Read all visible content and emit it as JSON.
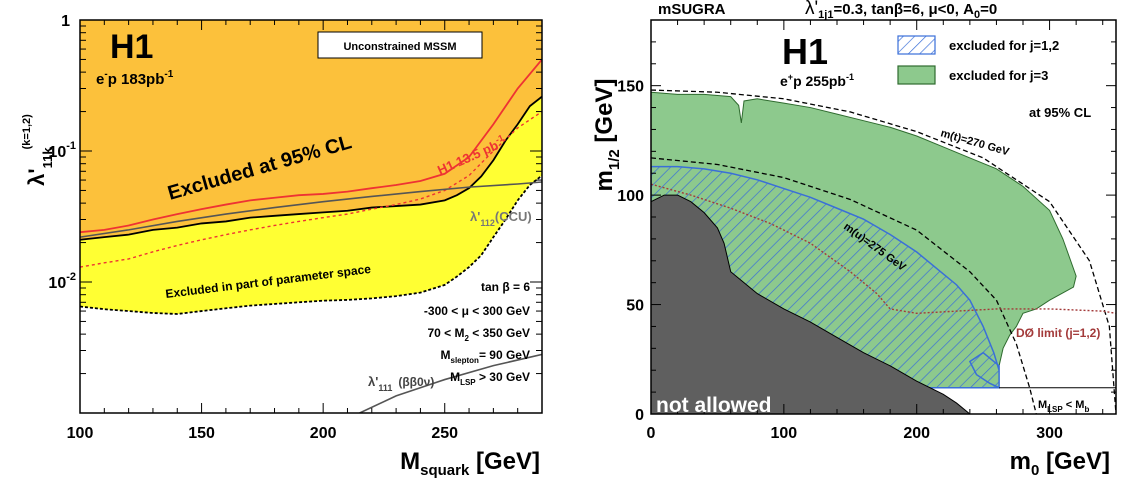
{
  "chart_data": [
    {
      "type": "area",
      "xlabel_main": "M",
      "xlabel_sub": "squark",
      "xlabel_unit": " [GeV]",
      "ylabel_main": "λ'",
      "ylabel_sub": "11k",
      "ylabel_sup": "(k=1,2)",
      "xlim": [
        100,
        290
      ],
      "ylim": [
        0.001,
        1
      ],
      "y_log": true,
      "x_ticks": [
        100,
        150,
        200,
        250
      ],
      "y_ticks": [
        {
          "v": 1,
          "label": "1",
          "exp": ""
        },
        {
          "v": 0.1,
          "label": "10",
          "exp": "-1"
        },
        {
          "v": 0.01,
          "label": "10",
          "exp": "-2"
        }
      ],
      "experiment": "H1",
      "dataset_main": "e",
      "dataset_sup": "-",
      "dataset_rest": "p 183pb",
      "dataset_exp": "-1",
      "box_label": "Unconstrained MSSM",
      "excluded_label": "Excluded at 95% CL",
      "partial_label": "Excluded in part of parameter space",
      "h1_prev_main": "H1 13.5 pb",
      "h1_prev_exp": "-1",
      "ccu_main": "λ'",
      "ccu_sub": "112",
      "ccu_rest": "(CCU)",
      "bb0v_main": "λ'",
      "bb0v_sub": "111",
      "bb0v_rest": "(ββ0ν)",
      "params": [
        "tan β = 6",
        "-300 <  μ  < 300 GeV",
        "70 < M",
        "M",
        "M"
      ],
      "param_lines": {
        "tanb": "tan β = 6",
        "mu": "-300 <  μ  < 300 GeV",
        "m2_a": "70 < M",
        "m2_sub": "2",
        "m2_b": " < 350 GeV",
        "msl_a": "M",
        "msl_sub": "slepton",
        "msl_b": "= 90 GeV",
        "mlsp_a": "M",
        "mlsp_sub": "LSP",
        "mlsp_b": " > 30 GeV"
      },
      "series": [
        {
          "name": "Excluded at 95% CL",
          "color": "#fcc13b",
          "x": [
            100,
            110,
            120,
            130,
            140,
            150,
            160,
            170,
            180,
            190,
            200,
            210,
            220,
            230,
            240,
            250,
            255,
            260,
            265,
            270,
            275,
            280,
            285,
            290
          ],
          "y": [
            0.021,
            0.022,
            0.023,
            0.025,
            0.026,
            0.028,
            0.029,
            0.031,
            0.032,
            0.033,
            0.034,
            0.035,
            0.037,
            0.038,
            0.039,
            0.042,
            0.046,
            0.052,
            0.064,
            0.085,
            0.12,
            0.16,
            0.22,
            0.26
          ]
        },
        {
          "name": "Excluded in part of parameter space",
          "color": "#ffff33",
          "x": [
            100,
            110,
            120,
            130,
            140,
            150,
            160,
            170,
            180,
            190,
            200,
            210,
            220,
            230,
            240,
            250,
            255,
            260,
            265,
            270,
            275,
            280,
            285,
            290
          ],
          "y": [
            0.0065,
            0.0062,
            0.006,
            0.0058,
            0.0057,
            0.006,
            0.0063,
            0.0066,
            0.0068,
            0.007,
            0.0072,
            0.0073,
            0.0075,
            0.0078,
            0.0083,
            0.0095,
            0.011,
            0.013,
            0.016,
            0.022,
            0.03,
            0.042,
            0.055,
            0.065
          ]
        },
        {
          "name": "H1 13.5 pb-1",
          "color": "#ee3333",
          "x": [
            100,
            110,
            120,
            130,
            140,
            150,
            160,
            170,
            180,
            190,
            200,
            210,
            220,
            230,
            240,
            250,
            260,
            270,
            280,
            290
          ],
          "y": [
            0.024,
            0.025,
            0.027,
            0.03,
            0.033,
            0.036,
            0.039,
            0.042,
            0.044,
            0.046,
            0.047,
            0.049,
            0.052,
            0.055,
            0.059,
            0.067,
            0.09,
            0.16,
            0.3,
            0.5
          ]
        },
        {
          "name": "H1 13.5 pb-1 (dashed)",
          "color": "#ee3333",
          "x": [
            100,
            110,
            120,
            130,
            140,
            150,
            160,
            170,
            180,
            190,
            200,
            210,
            220,
            230,
            240,
            250,
            260,
            270,
            280,
            290
          ],
          "y": [
            0.013,
            0.014,
            0.015,
            0.017,
            0.019,
            0.021,
            0.023,
            0.025,
            0.027,
            0.029,
            0.031,
            0.033,
            0.036,
            0.039,
            0.043,
            0.05,
            0.065,
            0.1,
            0.15,
            0.2
          ]
        },
        {
          "name": "λ'112 (CCU)",
          "color": "#555555",
          "x": [
            100,
            120,
            140,
            160,
            180,
            200,
            220,
            240,
            260,
            280,
            290
          ],
          "y": [
            0.022,
            0.025,
            0.029,
            0.033,
            0.037,
            0.041,
            0.045,
            0.049,
            0.053,
            0.056,
            0.058
          ]
        },
        {
          "name": "λ'111 (ββ0ν)",
          "color": "#555555",
          "x": [
            215,
            230,
            250,
            270,
            290
          ],
          "y": [
            0.001,
            0.00135,
            0.0018,
            0.0023,
            0.0028
          ]
        }
      ]
    },
    {
      "type": "area",
      "xlabel_main": "m",
      "xlabel_sub": "0",
      "xlabel_unit": " [GeV]",
      "ylabel_main": "m",
      "ylabel_sub": "1/2",
      "ylabel_unit": " [GeV]",
      "xlim": [
        0,
        350
      ],
      "ylim": [
        0,
        180
      ],
      "x_ticks": [
        0,
        100,
        200,
        300
      ],
      "y_ticks": [
        0,
        50,
        100,
        150
      ],
      "title_left": "mSUGRA",
      "title_right_main": "λ'",
      "title_right_sub": "1j1",
      "title_right_rest": "=0.3, tanβ=6, μ<0, A",
      "title_right_sub2": "0",
      "title_right_end": "=0",
      "experiment": "H1",
      "dataset_main": "e",
      "dataset_sup": "+",
      "dataset_rest": "p 255pb",
      "dataset_exp": "-1",
      "legend": [
        {
          "label": "excluded for j=1,2",
          "color": "#3a6fd8"
        },
        {
          "label": "excluded for j=3",
          "color": "#7fc47f"
        }
      ],
      "cl_label": "at 95% CL",
      "stop_label_a": "m(",
      "stop_label_t": "t",
      "stop_label_b": ")=270 GeV",
      "sup_label_a": "m(",
      "sup_label_t": "u",
      "sup_label_b": ")=275 GeV",
      "d0_label": "DØ limit (j=1,2)",
      "not_allowed": "not allowed",
      "mlsp_a": "M",
      "mlsp_sub": "LSP",
      "mlsp_mid": " < M",
      "mlsp_sub2": "b",
      "series": [
        {
          "name": "excluded for j=3",
          "color": "#8dc98d",
          "x": [
            0,
            20,
            40,
            60,
            66,
            68,
            70,
            80,
            100,
            120,
            140,
            160,
            180,
            200,
            220,
            240,
            260,
            280,
            300,
            310,
            320,
            318,
            312,
            300,
            290,
            280,
            275,
            270,
            265,
            262,
            262,
            0
          ],
          "y": [
            147,
            146,
            146,
            145,
            141,
            133,
            143,
            144,
            142,
            140,
            137,
            134,
            131,
            127,
            122,
            117,
            112,
            104,
            93,
            80,
            63,
            58,
            56,
            52,
            48,
            46,
            40,
            36,
            30,
            22,
            12,
            12
          ]
        },
        {
          "name": "excluded for j=1,2",
          "color": "#3a6fd8",
          "x": [
            0,
            20,
            40,
            60,
            80,
            100,
            120,
            140,
            160,
            180,
            200,
            220,
            230,
            240,
            250,
            258,
            262,
            262,
            255,
            245,
            240,
            250,
            262,
            262,
            0
          ],
          "y": [
            113,
            113,
            112,
            110,
            107,
            103,
            99,
            94,
            89,
            82,
            74,
            64,
            59,
            52,
            40,
            28,
            20,
            12,
            14,
            18,
            24,
            28,
            22,
            12,
            12
          ]
        },
        {
          "name": "not allowed",
          "color": "#5f5f5f",
          "x": [
            0,
            10,
            20,
            30,
            40,
            50,
            55,
            60,
            80,
            100,
            120,
            140,
            160,
            180,
            200,
            220,
            230,
            240,
            0
          ],
          "y": [
            97,
            100,
            100,
            97,
            92,
            85,
            78,
            65,
            55,
            48,
            42,
            35,
            28,
            22,
            15,
            9,
            5,
            0,
            0
          ]
        },
        {
          "name": "m(t)=270 GeV",
          "color": "#000000",
          "x": [
            0,
            50,
            100,
            150,
            200,
            250,
            300,
            330,
            345,
            350
          ],
          "y": [
            148,
            147,
            144,
            138,
            129,
            117,
            97,
            70,
            40,
            0
          ]
        },
        {
          "name": "m(u)=275 GeV",
          "color": "#000000",
          "x": [
            0,
            50,
            100,
            150,
            200,
            240,
            260,
            275,
            285,
            290
          ],
          "y": [
            117,
            114,
            108,
            98,
            84,
            65,
            52,
            32,
            12,
            0
          ]
        },
        {
          "name": "DØ limit (j=1,2)",
          "color": "#a33a3a",
          "x": [
            0,
            30,
            60,
            90,
            120,
            150,
            170,
            180,
            200,
            230,
            260,
            300,
            340,
            350
          ],
          "y": [
            105,
            100,
            94,
            87,
            78,
            65,
            55,
            48,
            46,
            47,
            48,
            48,
            47,
            46
          ]
        }
      ]
    }
  ]
}
